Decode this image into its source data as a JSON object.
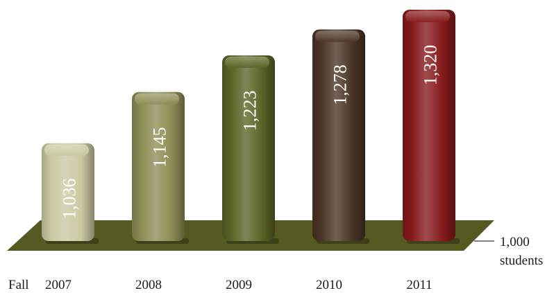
{
  "chart_data": {
    "type": "bar",
    "categories": [
      "2007",
      "2008",
      "2009",
      "2010",
      "2011"
    ],
    "values": [
      1036,
      1145,
      1223,
      1278,
      1320
    ],
    "value_labels": [
      "1,036",
      "1,145",
      "1,223",
      "1,278",
      "1,320"
    ],
    "x_prefix": "Fall",
    "baseline": 1000,
    "baseline_label_value": "1,000",
    "baseline_label_unit": "students",
    "colors": [
      "#cbc9a3",
      "#8e8d55",
      "#5b6426",
      "#4a3526",
      "#861a1c"
    ],
    "floor_color": "#565a22",
    "title": "",
    "xlabel": "",
    "ylabel": ""
  }
}
